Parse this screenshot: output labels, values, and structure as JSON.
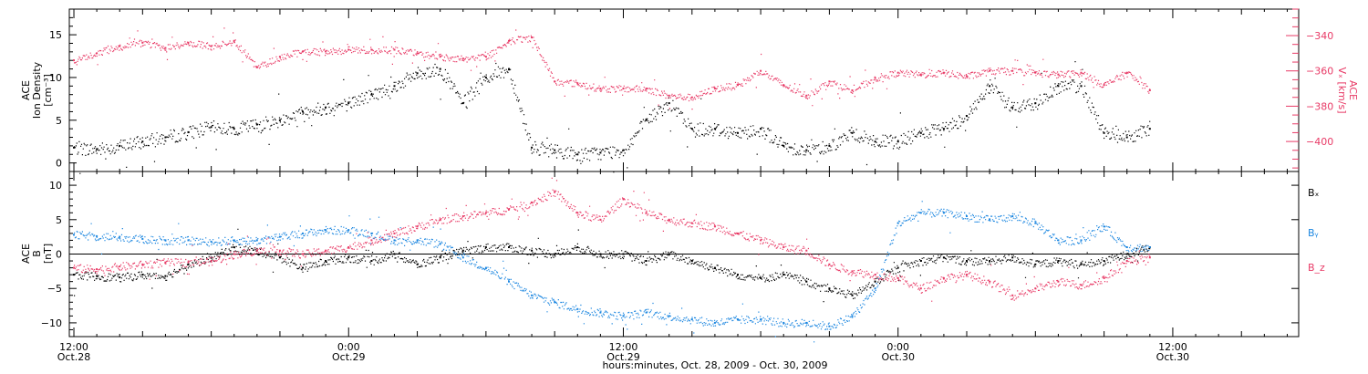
{
  "x_axis": {
    "title": "hours:minutes, Oct. 28, 2009 - Oct. 30, 2009",
    "range_hours": [
      -0.2,
      53.5
    ],
    "ticks": [
      {
        "t": 0,
        "time": "12:00",
        "date": "Oct.28"
      },
      {
        "t": 12,
        "time": "0:00",
        "date": "Oct.29"
      },
      {
        "t": 24,
        "time": "12:00",
        "date": "Oct.29"
      },
      {
        "t": 36,
        "time": "0:00",
        "date": "Oct.30"
      },
      {
        "t": 48,
        "time": "12:00",
        "date": "Oct.30"
      }
    ]
  },
  "colors": {
    "black": "#000000",
    "pink": "#e83a66",
    "blue": "#1b86e0"
  },
  "chart_data": [
    {
      "type": "scatter",
      "panel": "top",
      "ylabel_left": [
        "ACE",
        "Ion Density",
        "[cm⁻³]"
      ],
      "ylabel_right": [
        "ACE",
        "Vₓ [km/s]"
      ],
      "ylim_left": [
        -1,
        18
      ],
      "ylim_right": [
        -417,
        -325
      ],
      "yticks_left": [
        0,
        5,
        10,
        15
      ],
      "yticks_right": [
        -400,
        -380,
        -360,
        -340
      ],
      "series": [
        {
          "axis": "left",
          "color": "#000000",
          "x": [
            0,
            1,
            2,
            3,
            4,
            5,
            6,
            7,
            8,
            9,
            10,
            11,
            12,
            13,
            14,
            15,
            16,
            17,
            18,
            19,
            20,
            21,
            22,
            23,
            24,
            25,
            26,
            27,
            28,
            29,
            30,
            31,
            32,
            33,
            34,
            35,
            36,
            37,
            38,
            39,
            40,
            41,
            42,
            43,
            44,
            45,
            46,
            47
          ],
          "y": [
            1.8,
            1.6,
            2.0,
            2.5,
            3.0,
            3.6,
            4.2,
            4.0,
            4.5,
            5.0,
            6.0,
            6.5,
            7.0,
            8.0,
            9.0,
            10.5,
            11.0,
            7.0,
            10.0,
            11.0,
            1.8,
            1.5,
            1.0,
            1.2,
            1.5,
            5.0,
            7.0,
            4.0,
            4.0,
            3.5,
            4.0,
            2.0,
            1.5,
            2.0,
            3.5,
            2.5,
            2.5,
            3.5,
            4.0,
            5.5,
            9.0,
            6.5,
            7.0,
            9.0,
            9.0,
            3.5,
            3.0,
            4.0
          ]
        },
        {
          "axis": "right",
          "color": "#e83a66",
          "x": [
            0,
            1,
            2,
            3,
            4,
            5,
            6,
            7,
            8,
            9,
            10,
            11,
            12,
            13,
            14,
            15,
            16,
            17,
            18,
            19,
            20,
            21,
            22,
            23,
            24,
            25,
            26,
            27,
            28,
            29,
            30,
            31,
            32,
            33,
            34,
            35,
            36,
            37,
            38,
            39,
            40,
            41,
            42,
            43,
            44,
            45,
            46,
            47
          ],
          "y": [
            -354,
            -350,
            -346,
            -344,
            -347,
            -344,
            -346,
            -343,
            -358,
            -352,
            -349,
            -349,
            -348,
            -348,
            -348,
            -350,
            -352,
            -353,
            -352,
            -343,
            -341,
            -366,
            -367,
            -370,
            -370,
            -370,
            -374,
            -375,
            -370,
            -368,
            -360,
            -368,
            -374,
            -366,
            -371,
            -364,
            -361,
            -362,
            -361,
            -363,
            -360,
            -360,
            -361,
            -362,
            -361,
            -368,
            -361,
            -371
          ]
        }
      ],
      "hline": null
    },
    {
      "type": "scatter",
      "panel": "bottom",
      "ylabel_left": [
        "ACE",
        "B",
        "[nT]"
      ],
      "ylim": [
        -12,
        12
      ],
      "yticks": [
        -10,
        -5,
        0,
        5,
        10
      ],
      "legend": [
        "Bₓ",
        "Bᵧ",
        "B_z"
      ],
      "hline": 0,
      "series": [
        {
          "name": "Bₓ",
          "color": "#000000",
          "x": [
            0,
            1,
            2,
            3,
            4,
            5,
            6,
            7,
            8,
            9,
            10,
            11,
            12,
            13,
            14,
            15,
            16,
            17,
            18,
            19,
            20,
            21,
            22,
            23,
            24,
            25,
            26,
            27,
            28,
            29,
            30,
            31,
            32,
            33,
            34,
            35,
            36,
            37,
            38,
            39,
            40,
            41,
            42,
            43,
            44,
            45,
            46,
            47
          ],
          "y": [
            -3.0,
            -3.2,
            -3.4,
            -3.0,
            -3.2,
            -1.5,
            -0.5,
            1.0,
            0.5,
            -0.5,
            -2.0,
            -1.0,
            -0.5,
            -1.0,
            0.0,
            -1.5,
            -0.5,
            0.5,
            1.0,
            1.0,
            0.5,
            0.0,
            1.0,
            0.0,
            0.0,
            -1.0,
            0.0,
            -1.0,
            -2.0,
            -3.0,
            -3.5,
            -3.0,
            -4.0,
            -5.0,
            -6.0,
            -4.0,
            -2.0,
            -1.0,
            -0.5,
            -1.0,
            -1.0,
            -0.5,
            -1.5,
            -1.0,
            -1.5,
            -1.0,
            0.0,
            1.0
          ]
        },
        {
          "name": "Bᵧ",
          "color": "#1b86e0",
          "x": [
            0,
            1,
            2,
            3,
            4,
            5,
            6,
            7,
            8,
            9,
            10,
            11,
            12,
            13,
            14,
            15,
            16,
            17,
            18,
            19,
            20,
            21,
            22,
            23,
            24,
            25,
            26,
            27,
            28,
            29,
            30,
            31,
            32,
            33,
            34,
            35,
            36,
            37,
            38,
            39,
            40,
            41,
            42,
            43,
            44,
            45,
            46,
            47
          ],
          "y": [
            2.8,
            2.6,
            2.5,
            2.2,
            2.0,
            2.0,
            1.8,
            2.0,
            2.0,
            2.5,
            3.0,
            3.5,
            3.5,
            3.0,
            2.0,
            2.0,
            1.5,
            -0.5,
            -2.0,
            -4.0,
            -6.0,
            -7.0,
            -8.0,
            -8.5,
            -9.0,
            -8.5,
            -9.0,
            -9.5,
            -10.0,
            -9.5,
            -9.5,
            -10.0,
            -10.0,
            -10.5,
            -9.0,
            -5.0,
            4.5,
            6.0,
            6.0,
            5.5,
            5.0,
            5.5,
            4.5,
            2.0,
            2.0,
            4.0,
            1.0,
            1.0
          ]
        },
        {
          "name": "B_z",
          "color": "#e83a66",
          "x": [
            0,
            1,
            2,
            3,
            4,
            5,
            6,
            7,
            8,
            9,
            10,
            11,
            12,
            13,
            14,
            15,
            16,
            17,
            18,
            19,
            20,
            21,
            22,
            23,
            24,
            25,
            26,
            27,
            28,
            29,
            30,
            31,
            32,
            33,
            34,
            35,
            36,
            37,
            38,
            39,
            40,
            41,
            42,
            43,
            44,
            45,
            46,
            47
          ],
          "y": [
            -2.0,
            -2.2,
            -1.8,
            -1.5,
            -1.2,
            -1.2,
            -1.0,
            0.0,
            0.5,
            0.5,
            0.0,
            0.5,
            1.0,
            2.0,
            3.0,
            4.0,
            5.0,
            5.5,
            6.0,
            6.5,
            7.5,
            9.0,
            6.0,
            5.0,
            8.0,
            6.0,
            5.0,
            4.5,
            4.0,
            3.0,
            2.0,
            1.0,
            0.5,
            -1.5,
            -2.5,
            -3.0,
            -3.5,
            -5.0,
            -3.5,
            -3.0,
            -4.0,
            -6.0,
            -5.0,
            -4.0,
            -4.5,
            -3.5,
            -1.0,
            -0.5
          ]
        }
      ]
    }
  ]
}
